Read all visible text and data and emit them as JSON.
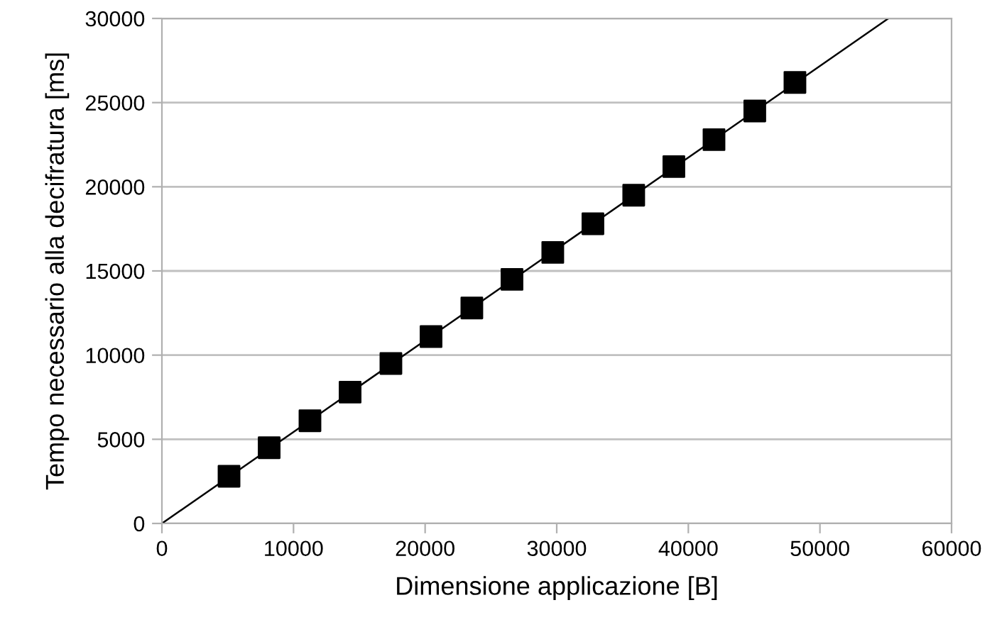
{
  "chart_data": {
    "type": "scatter",
    "xlabel": "Dimensione applicazione [B]",
    "ylabel": "Tempo necessario alla decifratura [ms]",
    "xlim": [
      0,
      60000
    ],
    "xticks": [
      0,
      10000,
      20000,
      30000,
      40000,
      50000,
      60000
    ],
    "ylim": [
      0,
      30000
    ],
    "yticks": [
      0,
      5000,
      10000,
      15000,
      20000,
      25000,
      30000
    ],
    "grid": "y",
    "marker": "square",
    "series": [
      {
        "type": "line",
        "color": "#000000",
        "x": [
          0,
          55200
        ],
        "values": [
          0,
          30000
        ],
        "marker": "none"
      },
      {
        "color": "#000000",
        "x": [
          5100,
          8150,
          11250,
          14300,
          17400,
          20450,
          23550,
          26600,
          29700,
          32750,
          35850,
          38900,
          41950,
          45050,
          48100
        ],
        "values": [
          2800,
          4500,
          6100,
          7800,
          9500,
          11100,
          12800,
          14500,
          16100,
          17800,
          19500,
          21200,
          22800,
          24500,
          26200
        ]
      }
    ]
  }
}
